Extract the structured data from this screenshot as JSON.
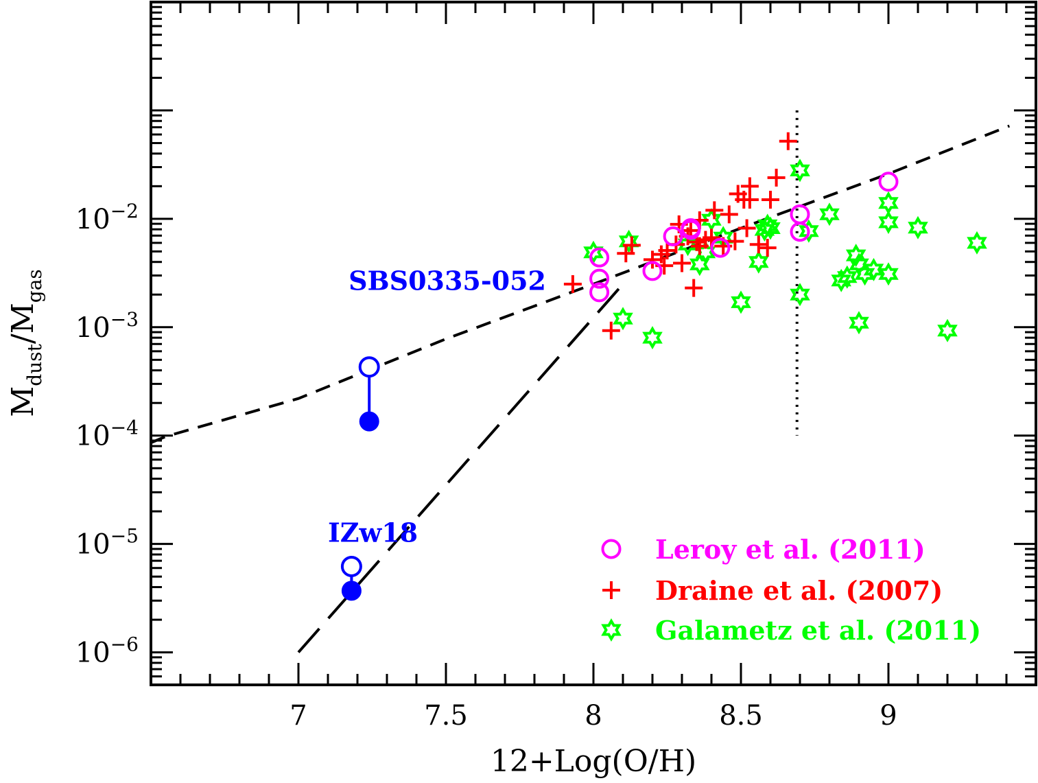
{
  "chart_data": {
    "type": "scatter",
    "xlabel": "12+Log(O/H)",
    "ylabel": {
      "main": "M",
      "sub1": "dust",
      "sep": "/M",
      "sub2": "gas"
    },
    "xlim": [
      6.5,
      9.5
    ],
    "ylim_log10": [
      -6.3,
      0.0
    ],
    "x_ticks": [
      {
        "value": 7,
        "label": "7"
      },
      {
        "value": 7.5,
        "label": "7.5"
      },
      {
        "value": 8,
        "label": "8"
      },
      {
        "value": 8.5,
        "label": "8.5"
      },
      {
        "value": 9,
        "label": "9"
      }
    ],
    "y_ticks": [
      {
        "exp": -2,
        "base": "10",
        "sup": "−2"
      },
      {
        "exp": -3,
        "base": "10",
        "sup": "−3"
      },
      {
        "exp": -4,
        "base": "10",
        "sup": "−4"
      },
      {
        "exp": -5,
        "base": "10",
        "sup": "−5"
      },
      {
        "exp": -6,
        "base": "10",
        "sup": "−6"
      }
    ],
    "colors": {
      "leroy": "#ff00ff",
      "draine": "#ff0000",
      "galametz": "#00ff00",
      "highlight": "#0000ff",
      "line": "#000000"
    },
    "series": [
      {
        "name": "Leroy et al. (2011)",
        "marker": "open-circle",
        "color": "#ff00ff",
        "points": [
          [
            8.02,
            0.0044
          ],
          [
            8.02,
            0.0028
          ],
          [
            8.02,
            0.0021
          ],
          [
            8.2,
            0.0033
          ],
          [
            8.27,
            0.0069
          ],
          [
            8.33,
            0.0079
          ],
          [
            8.33,
            0.0082
          ],
          [
            8.43,
            0.0054
          ],
          [
            8.7,
            0.011
          ],
          [
            8.7,
            0.0076
          ],
          [
            9.0,
            0.022
          ]
        ]
      },
      {
        "name": "Draine et al. (2007)",
        "marker": "plus",
        "color": "#ff0000",
        "points": [
          [
            7.93,
            0.0025
          ],
          [
            8.06,
            0.00093
          ],
          [
            8.11,
            0.0048
          ],
          [
            8.13,
            0.0057
          ],
          [
            8.2,
            0.0042
          ],
          [
            8.23,
            0.0047
          ],
          [
            8.24,
            0.0037
          ],
          [
            8.25,
            0.0051
          ],
          [
            8.28,
            0.0058
          ],
          [
            8.29,
            0.0089
          ],
          [
            8.3,
            0.0039
          ],
          [
            8.32,
            0.0069
          ],
          [
            8.33,
            0.0078
          ],
          [
            8.34,
            0.0023
          ],
          [
            8.35,
            0.0061
          ],
          [
            8.36,
            0.0097
          ],
          [
            8.36,
            0.0056
          ],
          [
            8.38,
            0.0064
          ],
          [
            8.4,
            0.0067
          ],
          [
            8.41,
            0.012
          ],
          [
            8.44,
            0.0056
          ],
          [
            8.46,
            0.011
          ],
          [
            8.48,
            0.0062
          ],
          [
            8.49,
            0.017
          ],
          [
            8.51,
            0.015
          ],
          [
            8.52,
            0.0082
          ],
          [
            8.53,
            0.02
          ],
          [
            8.53,
            0.015
          ],
          [
            8.56,
            0.0058
          ],
          [
            8.59,
            0.0054
          ],
          [
            8.6,
            0.015
          ],
          [
            8.62,
            0.024
          ],
          [
            8.66,
            0.052
          ]
        ]
      },
      {
        "name": "Galametz et al. (2011)",
        "marker": "star",
        "color": "#00ff00",
        "points": [
          [
            8.0,
            0.0049
          ],
          [
            8.1,
            0.0012
          ],
          [
            8.12,
            0.0062
          ],
          [
            8.2,
            0.0008
          ],
          [
            8.32,
            0.0058
          ],
          [
            8.36,
            0.0038
          ],
          [
            8.38,
            0.0049
          ],
          [
            8.4,
            0.0098
          ],
          [
            8.44,
            0.0067
          ],
          [
            8.5,
            0.0017
          ],
          [
            8.56,
            0.004
          ],
          [
            8.58,
            0.0079
          ],
          [
            8.59,
            0.0087
          ],
          [
            8.6,
            0.0082
          ],
          [
            8.7,
            0.028
          ],
          [
            8.7,
            0.002
          ],
          [
            8.73,
            0.0077
          ],
          [
            8.8,
            0.011
          ],
          [
            8.84,
            0.0027
          ],
          [
            8.86,
            0.0029
          ],
          [
            8.89,
            0.0046
          ],
          [
            8.9,
            0.0038
          ],
          [
            8.9,
            0.0011
          ],
          [
            8.92,
            0.0031
          ],
          [
            8.95,
            0.0034
          ],
          [
            9.0,
            0.014
          ],
          [
            9.0,
            0.0093
          ],
          [
            9.0,
            0.0031
          ],
          [
            9.1,
            0.0083
          ],
          [
            9.2,
            0.00093
          ],
          [
            9.3,
            0.006
          ]
        ]
      }
    ],
    "highlighted_galaxies": [
      {
        "label": "SBS0335-052",
        "x": 7.24,
        "open_value": 0.00043,
        "filled_value": 0.000135,
        "label_anchor": [
          7.17,
          0.0022
        ]
      },
      {
        "label": "IZw18",
        "x": 7.18,
        "open_value": 6.2e-06,
        "filled_value": 3.7e-06,
        "label_anchor": [
          7.1,
          1.05e-05
        ]
      }
    ],
    "lines": [
      {
        "name": "short-dashed",
        "style": "short-dash",
        "points": [
          [
            6.5,
            8.6e-05
          ],
          [
            6.55,
            9.8e-05
          ],
          [
            7.0,
            0.00022
          ],
          [
            7.5,
            0.00078
          ],
          [
            8.0,
            0.0025
          ],
          [
            8.5,
            0.0082
          ],
          [
            9.0,
            0.026
          ],
          [
            9.41,
            0.072
          ]
        ]
      },
      {
        "name": "long-dashed",
        "style": "long-dash",
        "points": [
          [
            7.0,
            1e-06
          ],
          [
            8.1,
            0.0025
          ]
        ]
      },
      {
        "name": "dotted-vertical",
        "style": "dotted",
        "points": [
          [
            8.69,
            0.1
          ],
          [
            8.69,
            0.0001
          ]
        ]
      }
    ],
    "legend": {
      "placement": "bottom-right"
    },
    "grid": false
  }
}
